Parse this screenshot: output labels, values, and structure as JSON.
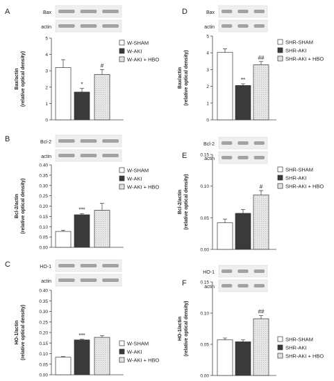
{
  "chart_data": [
    {
      "panel": "A",
      "type": "bar",
      "blot_labels": [
        "Bax",
        "actin"
      ],
      "ylabel": [
        "Bax/actin",
        "(relative optical density)"
      ],
      "categories": [
        "W-SHAM",
        "W-AKI",
        "W-AKI + HBO"
      ],
      "values": [
        3.2,
        1.7,
        2.78
      ],
      "errors": [
        0.48,
        0.22,
        0.3
      ],
      "annotations": [
        "",
        "*",
        "#"
      ],
      "ylim": [
        0,
        5
      ],
      "yticks": [
        "0",
        "1",
        "2",
        "3",
        "4",
        "5"
      ]
    },
    {
      "panel": "B",
      "type": "bar",
      "blot_labels": [
        "Bcl-2",
        "actin"
      ],
      "ylabel": [
        "Bcl-2/actin",
        "(relative optical density)"
      ],
      "categories": [
        "W-SHAM",
        "W-AKI",
        "W-AKI + HBO"
      ],
      "values": [
        0.077,
        0.158,
        0.18
      ],
      "errors": [
        0.006,
        0.005,
        0.033
      ],
      "annotations": [
        "",
        "***",
        ""
      ],
      "ylim": [
        0,
        0.4
      ],
      "yticks": [
        "0.00",
        "0.05",
        "0.10",
        "0.15",
        "0.20",
        "0.25",
        "0.30",
        "0.35",
        "0.40"
      ]
    },
    {
      "panel": "C",
      "type": "bar",
      "blot_labels": [
        "HO-1",
        "actin"
      ],
      "ylabel": [
        "HO-1/actin",
        "(relative optical density)"
      ],
      "categories": [
        "W-SHAM",
        "W-AKI",
        "W-AKI + HBO"
      ],
      "values": [
        0.083,
        0.165,
        0.177
      ],
      "errors": [
        0.003,
        0.003,
        0.008
      ],
      "annotations": [
        "",
        "***",
        ""
      ],
      "ylim": [
        0,
        0.4
      ],
      "yticks": [
        "0.00",
        "0.05",
        "0.10",
        "0.15",
        "0.20",
        "0.25",
        "0.30",
        "0.35",
        "0.40"
      ]
    },
    {
      "panel": "D",
      "type": "bar",
      "blot_labels": [
        "Bax",
        "actin"
      ],
      "ylabel": [
        "Bax/actin",
        "(relative optical density)"
      ],
      "categories": [
        "SHR-SHAM",
        "SHR-AKI",
        "SHR-AKI + HBO"
      ],
      "values": [
        4.02,
        2.05,
        3.28
      ],
      "errors": [
        0.22,
        0.1,
        0.2
      ],
      "annotations": [
        "",
        "**",
        "##"
      ],
      "ylim": [
        0,
        5
      ],
      "yticks": [
        "0",
        "1",
        "2",
        "3",
        "4",
        "5"
      ]
    },
    {
      "panel": "E",
      "type": "bar",
      "blot_labels": [
        "Bcl-2",
        "actin"
      ],
      "ylabel": [
        "Bcl-2/actin",
        "(relative optical density)"
      ],
      "categories": [
        "SHR-SHAM",
        "SHR-AKI",
        "SHR-AKI + HBO"
      ],
      "values": [
        0.042,
        0.057,
        0.086
      ],
      "errors": [
        0.006,
        0.006,
        0.007
      ],
      "annotations": [
        "",
        "",
        "#"
      ],
      "ylim": [
        0,
        0.15
      ],
      "yticks": [
        "0.00",
        "0.05",
        "0.10",
        "0.15"
      ]
    },
    {
      "panel": "F",
      "type": "bar",
      "blot_labels": [
        "HO-1",
        "actin"
      ],
      "ylabel": [
        "HO-1/actin",
        "(relative optical density)"
      ],
      "categories": [
        "SHR-SHAM",
        "SHR-AKI",
        "SHR-AKI + HBO"
      ],
      "values": [
        0.057,
        0.054,
        0.091
      ],
      "errors": [
        0.003,
        0.003,
        0.005
      ],
      "annotations": [
        "",
        "",
        "##"
      ],
      "ylim": [
        0,
        0.15
      ],
      "yticks": [
        "0.00",
        "0.05",
        "0.10",
        "0.15"
      ]
    }
  ],
  "colors": {
    "sham": "#ffffff",
    "aki": "#3a3a3a",
    "hbo": "#e6e6e6",
    "stroke": "#333333"
  }
}
